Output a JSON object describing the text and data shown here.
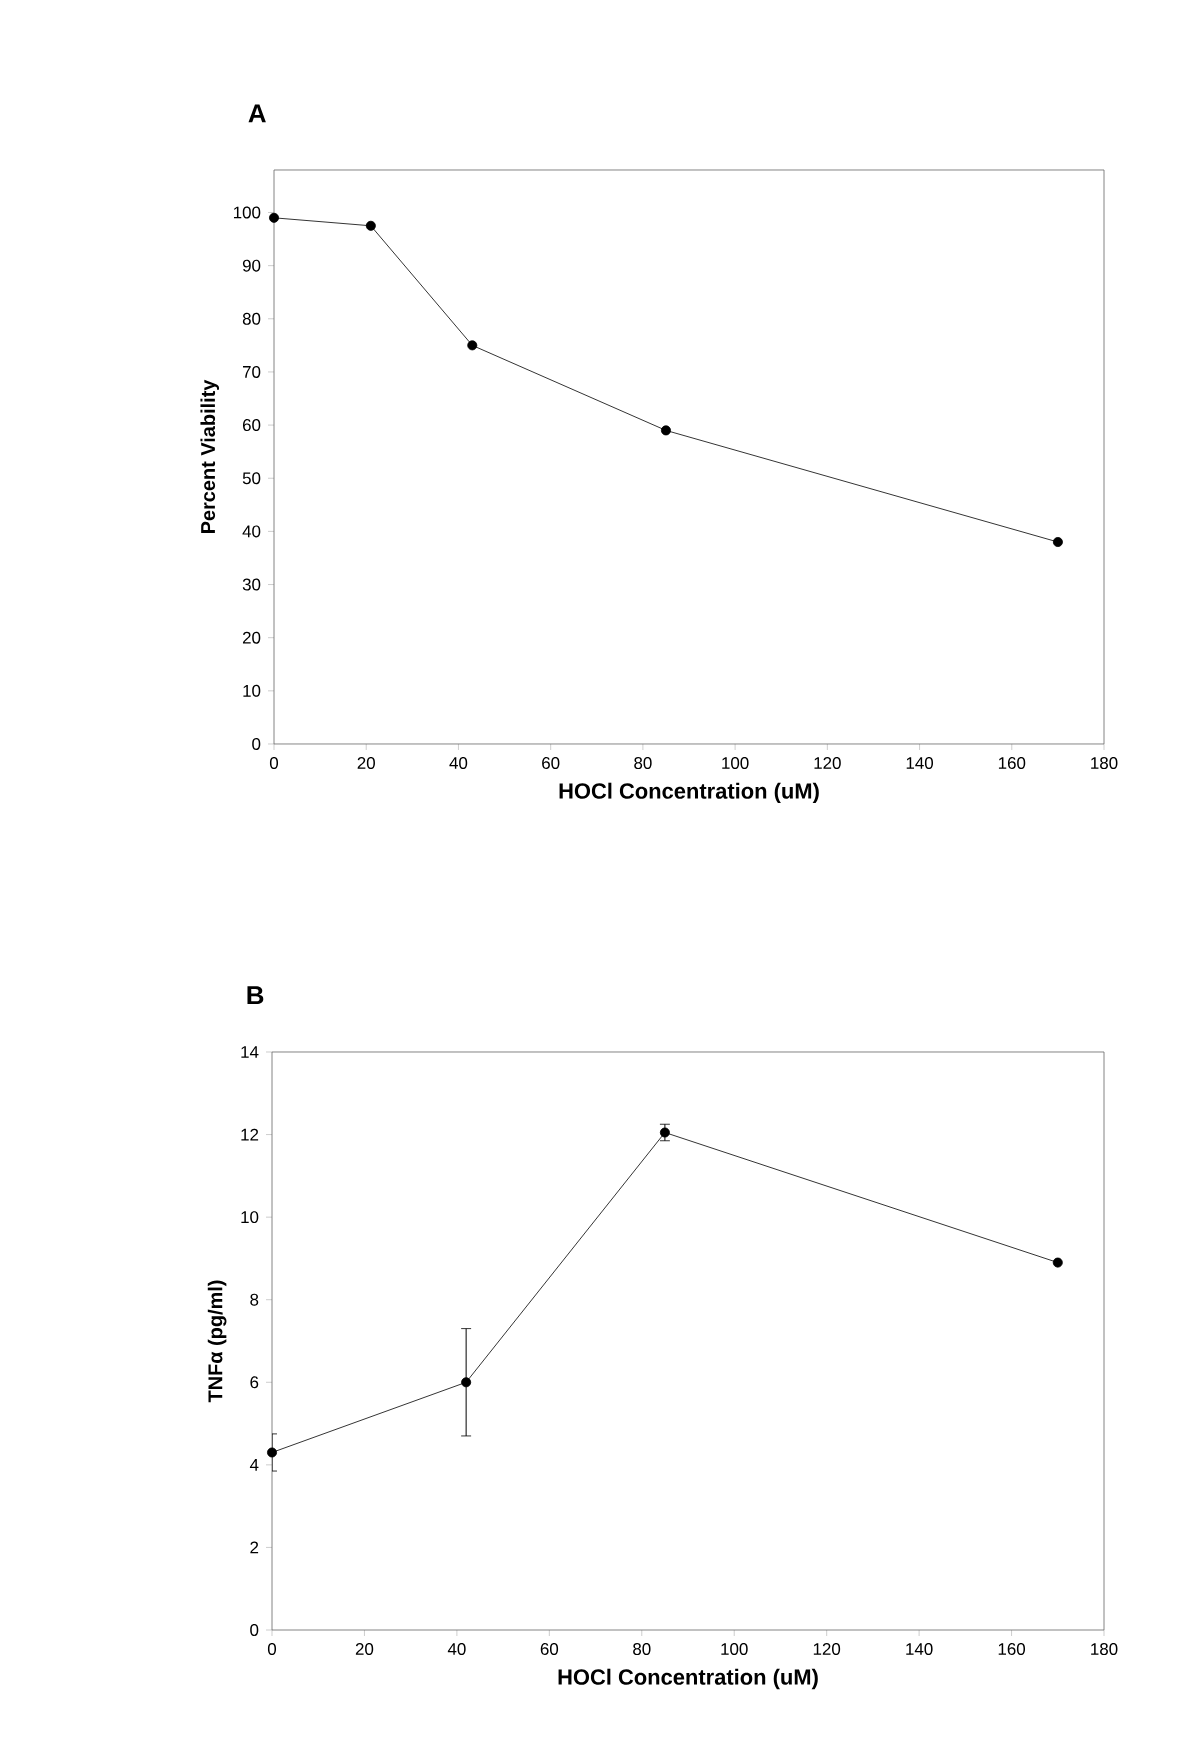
{
  "chart_data": [
    {
      "type": "line",
      "title": "A",
      "xlabel": "HOCl Concentration (uM)",
      "ylabel": "Percent Viability",
      "x": [
        0,
        21,
        43,
        85,
        170
      ],
      "series": [
        {
          "color": "#000000",
          "values": [
            99,
            97.5,
            75,
            59,
            38
          ]
        }
      ],
      "xlim": [
        0,
        180
      ],
      "ylim": [
        0,
        108
      ],
      "xticks": [
        0,
        20,
        40,
        60,
        80,
        100,
        120,
        140,
        160,
        180
      ],
      "yticks": [
        0,
        10,
        20,
        30,
        40,
        50,
        60,
        70,
        80,
        90,
        100
      ],
      "marker": "circle",
      "line_style": "solid"
    },
    {
      "type": "line",
      "title": "B",
      "xlabel": "HOCl Concentration (uM)",
      "ylabel": "TNFα (pg/ml)",
      "x": [
        0,
        42,
        85,
        170
      ],
      "series": [
        {
          "color": "#000000",
          "values": [
            4.3,
            6.0,
            12.05,
            8.9
          ],
          "errors": [
            0.45,
            1.3,
            0.2,
            null
          ]
        }
      ],
      "xlim": [
        0,
        180
      ],
      "ylim": [
        0,
        14
      ],
      "xticks": [
        0,
        20,
        40,
        60,
        80,
        100,
        120,
        140,
        160,
        180
      ],
      "yticks": [
        0,
        2,
        4,
        6,
        8,
        10,
        12,
        14
      ],
      "marker": "circle",
      "line_style": "solid"
    }
  ]
}
